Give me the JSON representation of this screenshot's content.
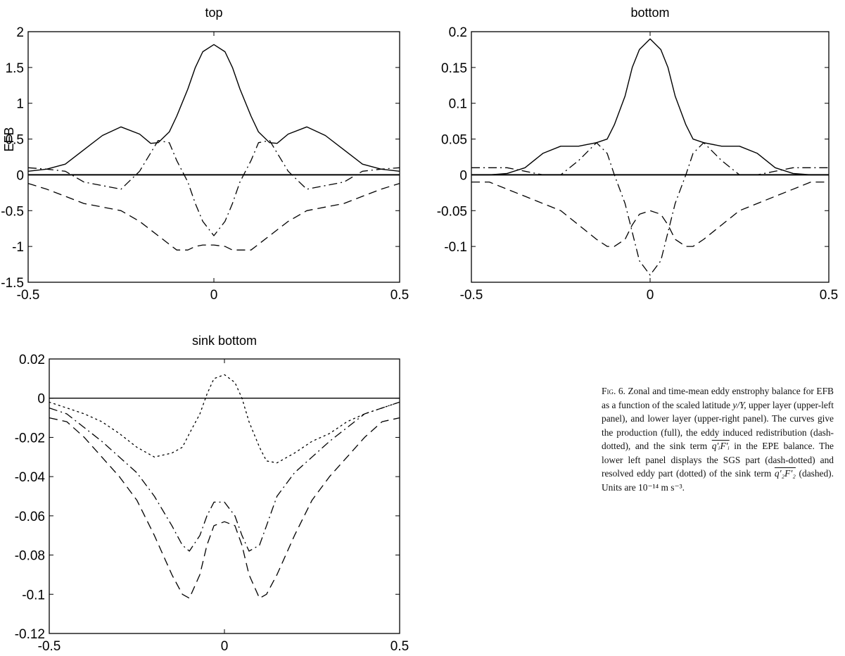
{
  "chart_data": [
    {
      "id": "top",
      "type": "line",
      "title": "top",
      "ylabel": "EFB",
      "xlim": [
        -0.5,
        0.5
      ],
      "ylim": [
        -1.5,
        2
      ],
      "xticks": [
        "-0.5",
        "0",
        "0.5"
      ],
      "yticks": [
        "-1.5",
        "-1",
        "-0.5",
        "0",
        "0.5",
        "1",
        "1.5",
        "2"
      ],
      "series": [
        {
          "style": "solid",
          "x": [
            -0.5,
            -0.45,
            -0.4,
            -0.35,
            -0.3,
            -0.25,
            -0.2,
            -0.17,
            -0.15,
            -0.12,
            -0.1,
            -0.07,
            -0.05,
            -0.03,
            0,
            0.03,
            0.05,
            0.07,
            0.1,
            0.12,
            0.15,
            0.17,
            0.2,
            0.25,
            0.3,
            0.35,
            0.4,
            0.45,
            0.5
          ],
          "y": [
            0.05,
            0.08,
            0.15,
            0.35,
            0.55,
            0.67,
            0.57,
            0.44,
            0.45,
            0.6,
            0.82,
            1.2,
            1.5,
            1.72,
            1.82,
            1.72,
            1.5,
            1.2,
            0.82,
            0.6,
            0.45,
            0.44,
            0.57,
            0.67,
            0.55,
            0.35,
            0.15,
            0.08,
            0.05
          ]
        },
        {
          "style": "dashdot",
          "x": [
            -0.5,
            -0.45,
            -0.4,
            -0.35,
            -0.3,
            -0.25,
            -0.2,
            -0.15,
            -0.12,
            -0.1,
            -0.07,
            -0.05,
            -0.03,
            0,
            0.03,
            0.05,
            0.07,
            0.1,
            0.12,
            0.15,
            0.2,
            0.25,
            0.3,
            0.35,
            0.4,
            0.45,
            0.5
          ],
          "y": [
            0.1,
            0.08,
            0.05,
            -0.1,
            -0.15,
            -0.2,
            0.05,
            0.48,
            0.45,
            0.2,
            -0.1,
            -0.4,
            -0.65,
            -0.85,
            -0.65,
            -0.4,
            -0.1,
            0.2,
            0.45,
            0.48,
            0.05,
            -0.2,
            -0.15,
            -0.1,
            0.05,
            0.08,
            0.1
          ]
        },
        {
          "style": "dashed",
          "x": [
            -0.5,
            -0.45,
            -0.4,
            -0.35,
            -0.3,
            -0.25,
            -0.2,
            -0.15,
            -0.1,
            -0.07,
            -0.05,
            -0.03,
            0,
            0.03,
            0.05,
            0.07,
            0.1,
            0.15,
            0.2,
            0.25,
            0.3,
            0.35,
            0.4,
            0.45,
            0.5
          ],
          "y": [
            -0.12,
            -0.2,
            -0.3,
            -0.4,
            -0.45,
            -0.5,
            -0.65,
            -0.85,
            -1.05,
            -1.05,
            -1.0,
            -0.98,
            -0.98,
            -1.0,
            -1.05,
            -1.05,
            -1.05,
            -0.85,
            -0.65,
            -0.5,
            -0.45,
            -0.4,
            -0.3,
            -0.2,
            -0.12
          ]
        }
      ]
    },
    {
      "id": "bottom",
      "type": "line",
      "title": "bottom",
      "ylabel": "",
      "xlim": [
        -0.5,
        0.5
      ],
      "ylim": [
        -0.15,
        0.2
      ],
      "xticks": [
        "-0.5",
        "0",
        "0.5"
      ],
      "yticks": [
        "-0.1",
        "-0.05",
        "0",
        "0.05",
        "0.1",
        "0.15",
        "0.2"
      ],
      "series": [
        {
          "style": "solid",
          "x": [
            -0.5,
            -0.45,
            -0.4,
            -0.35,
            -0.3,
            -0.25,
            -0.2,
            -0.15,
            -0.12,
            -0.1,
            -0.07,
            -0.05,
            -0.03,
            0,
            0.03,
            0.05,
            0.07,
            0.1,
            0.12,
            0.15,
            0.2,
            0.25,
            0.3,
            0.35,
            0.4,
            0.45,
            0.5
          ],
          "y": [
            0.0,
            0.0,
            0.002,
            0.01,
            0.03,
            0.04,
            0.04,
            0.045,
            0.05,
            0.07,
            0.11,
            0.15,
            0.175,
            0.19,
            0.175,
            0.15,
            0.11,
            0.07,
            0.05,
            0.045,
            0.04,
            0.04,
            0.03,
            0.01,
            0.002,
            0.0,
            0.0
          ]
        },
        {
          "style": "dashdot",
          "x": [
            -0.5,
            -0.45,
            -0.4,
            -0.35,
            -0.3,
            -0.25,
            -0.2,
            -0.15,
            -0.12,
            -0.1,
            -0.07,
            -0.05,
            -0.03,
            0,
            0.03,
            0.05,
            0.07,
            0.1,
            0.12,
            0.15,
            0.2,
            0.25,
            0.3,
            0.35,
            0.4,
            0.45,
            0.5
          ],
          "y": [
            0.01,
            0.01,
            0.01,
            0.005,
            0.0,
            0.0,
            0.02,
            0.045,
            0.03,
            0.0,
            -0.04,
            -0.08,
            -0.12,
            -0.14,
            -0.12,
            -0.08,
            -0.04,
            0.0,
            0.03,
            0.045,
            0.02,
            0.0,
            0.0,
            0.005,
            0.01,
            0.01,
            0.01
          ]
        },
        {
          "style": "dashed",
          "x": [
            -0.5,
            -0.45,
            -0.4,
            -0.35,
            -0.3,
            -0.25,
            -0.2,
            -0.15,
            -0.12,
            -0.1,
            -0.07,
            -0.05,
            -0.03,
            0,
            0.03,
            0.05,
            0.07,
            0.1,
            0.12,
            0.15,
            0.2,
            0.25,
            0.3,
            0.35,
            0.4,
            0.45,
            0.5
          ],
          "y": [
            -0.01,
            -0.01,
            -0.02,
            -0.03,
            -0.04,
            -0.05,
            -0.07,
            -0.09,
            -0.1,
            -0.1,
            -0.09,
            -0.07,
            -0.055,
            -0.05,
            -0.055,
            -0.07,
            -0.09,
            -0.1,
            -0.1,
            -0.09,
            -0.07,
            -0.05,
            -0.04,
            -0.03,
            -0.02,
            -0.01,
            -0.01
          ]
        }
      ]
    },
    {
      "id": "sink-bottom",
      "type": "line",
      "title": "sink bottom",
      "ylabel": "",
      "xlim": [
        -0.5,
        0.5
      ],
      "ylim": [
        -0.12,
        0.02
      ],
      "xticks": [
        "-0.5",
        "0",
        "0.5"
      ],
      "yticks": [
        "-0.12",
        "-0.1",
        "-0.08",
        "-0.06",
        "-0.04",
        "-0.02",
        "0",
        "0.02"
      ],
      "series": [
        {
          "style": "solid",
          "x": [
            -0.5,
            0.5
          ],
          "y": [
            0,
            0
          ]
        },
        {
          "style": "dotted",
          "x": [
            -0.5,
            -0.45,
            -0.4,
            -0.35,
            -0.3,
            -0.25,
            -0.2,
            -0.15,
            -0.12,
            -0.1,
            -0.07,
            -0.05,
            -0.03,
            0,
            0.03,
            0.05,
            0.07,
            0.1,
            0.12,
            0.15,
            0.2,
            0.25,
            0.3,
            0.35,
            0.4,
            0.45,
            0.5
          ],
          "y": [
            -0.002,
            -0.005,
            -0.008,
            -0.012,
            -0.018,
            -0.025,
            -0.03,
            -0.028,
            -0.025,
            -0.018,
            -0.008,
            0.002,
            0.01,
            0.012,
            0.008,
            0.0,
            -0.012,
            -0.025,
            -0.032,
            -0.033,
            -0.028,
            -0.022,
            -0.018,
            -0.012,
            -0.008,
            -0.005,
            -0.002
          ]
        },
        {
          "style": "dashdot",
          "x": [
            -0.5,
            -0.45,
            -0.4,
            -0.35,
            -0.3,
            -0.25,
            -0.2,
            -0.15,
            -0.12,
            -0.1,
            -0.07,
            -0.05,
            -0.03,
            0,
            0.03,
            0.05,
            0.07,
            0.1,
            0.12,
            0.15,
            0.2,
            0.25,
            0.3,
            0.35,
            0.4,
            0.45,
            0.5
          ],
          "y": [
            -0.005,
            -0.008,
            -0.015,
            -0.022,
            -0.03,
            -0.038,
            -0.05,
            -0.065,
            -0.075,
            -0.078,
            -0.07,
            -0.06,
            -0.053,
            -0.053,
            -0.06,
            -0.07,
            -0.078,
            -0.075,
            -0.065,
            -0.05,
            -0.038,
            -0.03,
            -0.022,
            -0.015,
            -0.008,
            -0.005,
            -0.002
          ]
        },
        {
          "style": "dashed",
          "x": [
            -0.5,
            -0.45,
            -0.4,
            -0.35,
            -0.3,
            -0.25,
            -0.2,
            -0.15,
            -0.12,
            -0.1,
            -0.07,
            -0.05,
            -0.03,
            0,
            0.03,
            0.05,
            0.07,
            0.1,
            0.12,
            0.15,
            0.2,
            0.25,
            0.3,
            0.35,
            0.4,
            0.45,
            0.5
          ],
          "y": [
            -0.01,
            -0.012,
            -0.02,
            -0.03,
            -0.04,
            -0.052,
            -0.07,
            -0.09,
            -0.1,
            -0.102,
            -0.09,
            -0.075,
            -0.065,
            -0.063,
            -0.065,
            -0.075,
            -0.09,
            -0.102,
            -0.1,
            -0.09,
            -0.07,
            -0.052,
            -0.04,
            -0.03,
            -0.02,
            -0.012,
            -0.01
          ]
        }
      ]
    }
  ],
  "caption": {
    "fig_label": "Fig. 6.",
    "text_1": " Zonal and time-mean eddy enstrophy balance for EFB as a function of the scaled latitude ",
    "var_yY": "y/Y,",
    "text_2": " upper layer (upper-left panel), and lower layer (upper-right panel). The curves give the production (full), the eddy induced redistribution (dash-dotted), and the sink term ",
    "term_1": "q′ᵢF′ᵢ",
    "text_3": " in the EPE balance. The lower left panel displays the SGS part (dash-dotted) and resolved eddy part (dotted) of the sink term ",
    "term_2": "q′₂F′₂",
    "text_4": " (dashed). Units are 10⁻¹⁴ m s⁻³."
  }
}
